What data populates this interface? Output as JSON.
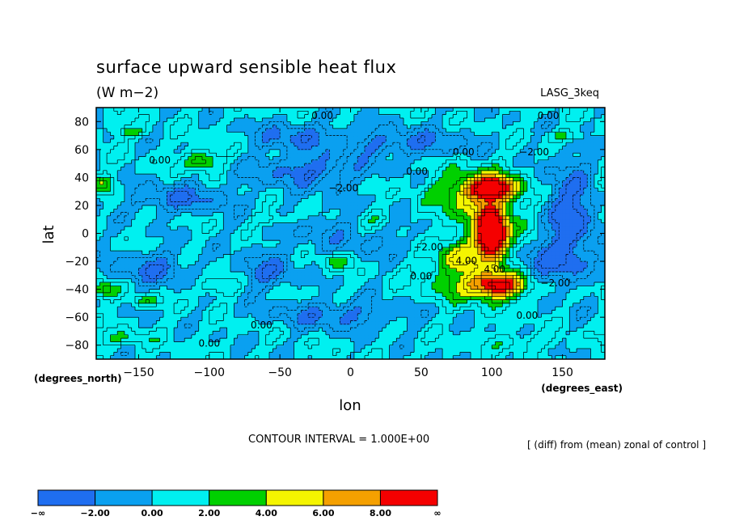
{
  "chart_data": {
    "type": "heatmap",
    "title": "surface upward sensible heat flux",
    "units": "(W m−2)",
    "model": "LASG_3keq",
    "xlabel": "lon",
    "ylabel": "lat",
    "x_units": "(degrees_east)",
    "y_units": "(degrees_north)",
    "xlim": [
      -180,
      180
    ],
    "ylim": [
      -90,
      90
    ],
    "x_ticks": [
      -150,
      -100,
      -50,
      0,
      50,
      100,
      150
    ],
    "y_ticks": [
      -80,
      -60,
      -40,
      -20,
      0,
      20,
      40,
      60,
      80
    ],
    "x_tick_labels": [
      "−150",
      "−100",
      "−50",
      "0",
      "50",
      "100",
      "150"
    ],
    "y_tick_labels": [
      "−80",
      "−60",
      "−40",
      "−20",
      "0",
      "20",
      "40",
      "60",
      "80"
    ],
    "contour_interval_text": "CONTOUR INTERVAL = 1.000E+00",
    "description_text": "[ (diff) from (mean) zonal of control ]",
    "colorbar": {
      "levels": [
        -2,
        0,
        2,
        4,
        6,
        8
      ],
      "labels": [
        "−∞",
        "−2.00",
        "0.00",
        "2.00",
        "4.00",
        "6.00",
        "8.00",
        "∞"
      ],
      "colors": [
        "#1f6ef0",
        "#0aa0f0",
        "#00f0f0",
        "#00d000",
        "#f5f500",
        "#f5a000",
        "#f50000"
      ]
    },
    "field": {
      "base": 0.3,
      "features": [
        {
          "lon": 100,
          "lat": 0,
          "rlon": 10,
          "rlat": 16,
          "amp": 14
        },
        {
          "lon": 95,
          "lat": 8,
          "rlon": 30,
          "rlat": 30,
          "amp": 3
        },
        {
          "lon": 100,
          "lat": 33,
          "rlon": 16,
          "rlat": 8,
          "amp": 8
        },
        {
          "lon": 88,
          "lat": 30,
          "rlon": 28,
          "rlat": 14,
          "amp": 3.5
        },
        {
          "lon": 105,
          "lat": -37,
          "rlon": 18,
          "rlat": 8,
          "amp": 8
        },
        {
          "lon": 88,
          "lat": -35,
          "rlon": 30,
          "rlat": 14,
          "amp": 3.5
        },
        {
          "lon": 75,
          "lat": -17,
          "rlon": 18,
          "rlat": 10,
          "amp": 3
        },
        {
          "lon": 155,
          "lat": 10,
          "rlon": 18,
          "rlat": 40,
          "amp": -4
        },
        {
          "lon": 135,
          "lat": -20,
          "rlon": 22,
          "rlat": 14,
          "amp": -2.5
        },
        {
          "lon": -30,
          "lat": 45,
          "rlon": 40,
          "rlat": 12,
          "amp": -3
        },
        {
          "lon": -120,
          "lat": 25,
          "rlon": 35,
          "rlat": 10,
          "amp": -2.8
        },
        {
          "lon": -140,
          "lat": -25,
          "rlon": 25,
          "rlat": 12,
          "amp": -2.8
        },
        {
          "lon": -60,
          "lat": -28,
          "rlon": 18,
          "rlat": 12,
          "amp": -2.8
        },
        {
          "lon": -10,
          "lat": -58,
          "rlon": 45,
          "rlat": 10,
          "amp": -2.6
        },
        {
          "lon": 40,
          "lat": 65,
          "rlon": 50,
          "rlat": 10,
          "amp": -2.6
        },
        {
          "lon": -40,
          "lat": 70,
          "rlon": 30,
          "rlat": 10,
          "amp": -2.4
        },
        {
          "lon": 0,
          "lat": 0,
          "rlon": 60,
          "rlat": 18,
          "amp": -1.4
        },
        {
          "lon": -105,
          "lat": 52,
          "rlon": 12,
          "rlat": 7,
          "amp": 4
        },
        {
          "lon": -175,
          "lat": 35,
          "rlon": 8,
          "rlat": 6,
          "amp": 3.6
        },
        {
          "lon": -175,
          "lat": -40,
          "rlon": 9,
          "rlat": 6,
          "amp": 3.6
        },
        {
          "lon": -145,
          "lat": -48,
          "rlon": 9,
          "rlat": 4,
          "amp": 2.8
        },
        {
          "lon": -95,
          "lat": -38,
          "rlon": 12,
          "rlat": 6,
          "amp": 2.4
        },
        {
          "lon": -155,
          "lat": 73,
          "rlon": 12,
          "rlat": 4,
          "amp": 2.2
        },
        {
          "lon": 150,
          "lat": 70,
          "rlon": 15,
          "rlat": 4,
          "amp": 2.2
        },
        {
          "lon": -10,
          "lat": -20,
          "rlon": 12,
          "rlat": 6,
          "amp": 2.2
        },
        {
          "lon": -55,
          "lat": 10,
          "rlon": 14,
          "rlat": 5,
          "amp": 2.1
        },
        {
          "lon": 20,
          "lat": 10,
          "rlon": 14,
          "rlat": 8,
          "amp": 2.0
        },
        {
          "lon": -160,
          "lat": -75,
          "rlon": 20,
          "rlat": 6,
          "amp": 1.6
        },
        {
          "lon": 120,
          "lat": -78,
          "rlon": 25,
          "rlat": 6,
          "amp": 1.6
        }
      ]
    },
    "contour_labels": [
      {
        "text": "0.00",
        "lon": -20,
        "lat": 84
      },
      {
        "text": "0.00",
        "lon": 140,
        "lat": 84
      },
      {
        "text": "−2.00",
        "lon": 130,
        "lat": 58
      },
      {
        "text": "0.00",
        "lon": 80,
        "lat": 58
      },
      {
        "text": "0.00",
        "lon": -135,
        "lat": 52
      },
      {
        "text": "0.00",
        "lon": 47,
        "lat": 44
      },
      {
        "text": "−2.00",
        "lon": -5,
        "lat": 32
      },
      {
        "text": "−2.00",
        "lon": 55,
        "lat": -10
      },
      {
        "text": "4.00",
        "lon": 82,
        "lat": -20
      },
      {
        "text": "4.00",
        "lon": 102,
        "lat": -26
      },
      {
        "text": "0.00",
        "lon": 50,
        "lat": -31
      },
      {
        "text": "−2.00",
        "lon": 145,
        "lat": -36
      },
      {
        "text": "0.00",
        "lon": 125,
        "lat": -59
      },
      {
        "text": "0.00",
        "lon": -63,
        "lat": -66
      },
      {
        "text": "0.00",
        "lon": -100,
        "lat": -79
      }
    ]
  }
}
